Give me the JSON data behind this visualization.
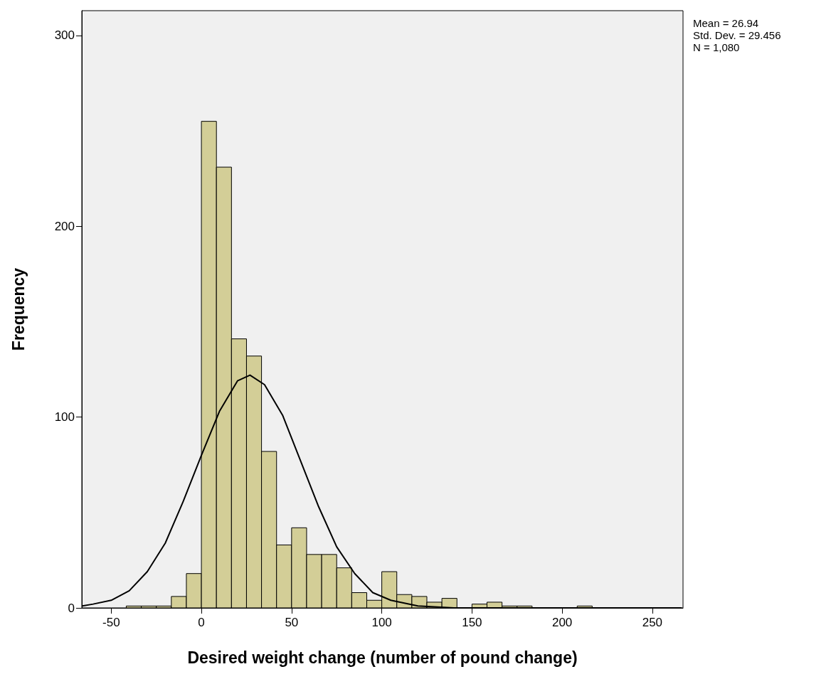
{
  "chart_data": {
    "type": "histogram",
    "xlabel": "Desired weight change (number of pound change)",
    "ylabel": "Frequency",
    "annotations": [
      "Mean = 26.94",
      "Std. Dev. = 29.456",
      "N = 1,080"
    ],
    "xlim": [
      -66.3,
      267
    ],
    "xticks": [
      -50,
      0,
      50,
      100,
      150,
      200,
      250
    ],
    "ylim": [
      0,
      313
    ],
    "yticks": [
      0,
      100,
      200,
      300
    ],
    "grid": false,
    "series": [
      {
        "type": "histogram",
        "color": "#d3ce97",
        "bins": [
          -41.67,
          -33.33,
          -25,
          -16.67,
          -8.33,
          0,
          8.33,
          16.67,
          25,
          33.33,
          41.67,
          50,
          58.33,
          66.67,
          75,
          83.33,
          91.67,
          100,
          108.33,
          116.67,
          125,
          133.33,
          141.67,
          150,
          158.33,
          166.67,
          175,
          183.33,
          191.67,
          200,
          208.33,
          216.67
        ],
        "values": [
          1,
          1,
          1,
          6,
          18,
          255,
          231,
          141,
          132,
          82,
          33,
          42,
          28,
          28,
          21,
          8,
          4,
          19,
          7,
          6,
          3,
          5,
          0,
          2,
          3,
          1,
          1,
          0,
          0,
          0,
          1
        ]
      },
      {
        "type": "line",
        "color": "#000000",
        "marker": "none",
        "line_style": "solid",
        "x": [
          -66,
          -60,
          -50,
          -40,
          -30,
          -20,
          -10,
          0,
          10,
          20,
          26.94,
          35,
          45,
          55,
          65,
          75,
          85,
          95,
          105,
          120,
          140,
          170,
          266
        ],
        "values": [
          1,
          2,
          4,
          9,
          19,
          34,
          56,
          80,
          103,
          119,
          122,
          117,
          101,
          77,
          53,
          32,
          18,
          8,
          4,
          1,
          0,
          0,
          0
        ]
      }
    ]
  }
}
